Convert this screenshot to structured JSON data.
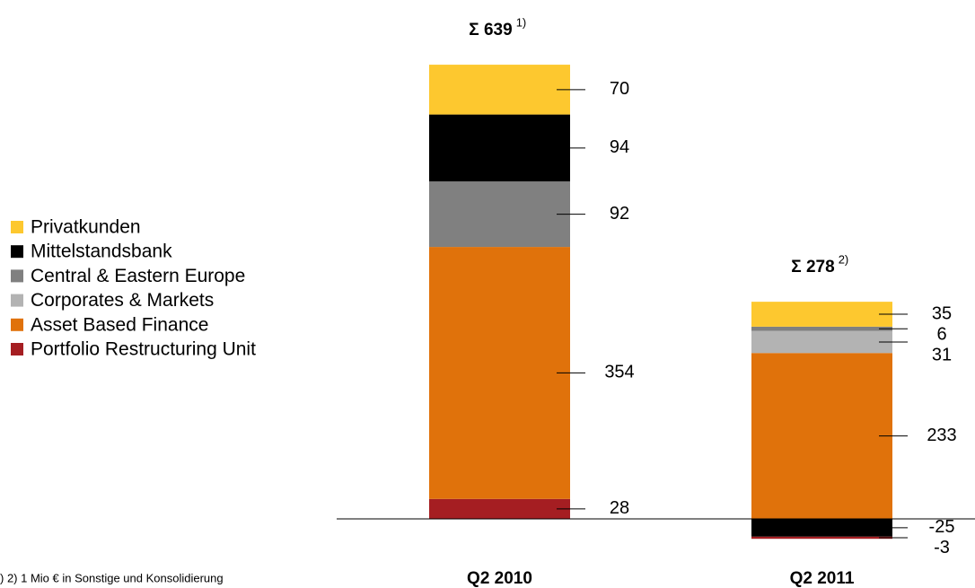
{
  "chart_data": {
    "type": "stacked_bar",
    "categories": [
      "Q2 2010",
      "Q2 2011"
    ],
    "series": [
      {
        "name": "Privatkunden",
        "color": "#fdc82f",
        "values": [
          70,
          35
        ]
      },
      {
        "name": "Mittelstandsbank",
        "color": "#000000",
        "values": [
          94,
          -25
        ]
      },
      {
        "name": "Central & Eastern Europe",
        "color": "#808080",
        "values": [
          92,
          6
        ]
      },
      {
        "name": "Corporates & Markets",
        "color": "#b3b3b3",
        "values": [
          null,
          31
        ]
      },
      {
        "name": "Asset Based Finance",
        "color": "#e0720b",
        "values": [
          354,
          233
        ]
      },
      {
        "name": "Portfolio Restructuring Unit",
        "color": "#a51e22",
        "values": [
          28,
          -3
        ]
      }
    ],
    "total_symbol": "Σ",
    "totals": [
      639,
      278
    ],
    "total_notes": [
      "1)",
      "2)"
    ],
    "footnote": ") 2) 1 Mio € in Sonstige und Konsolidierung"
  }
}
